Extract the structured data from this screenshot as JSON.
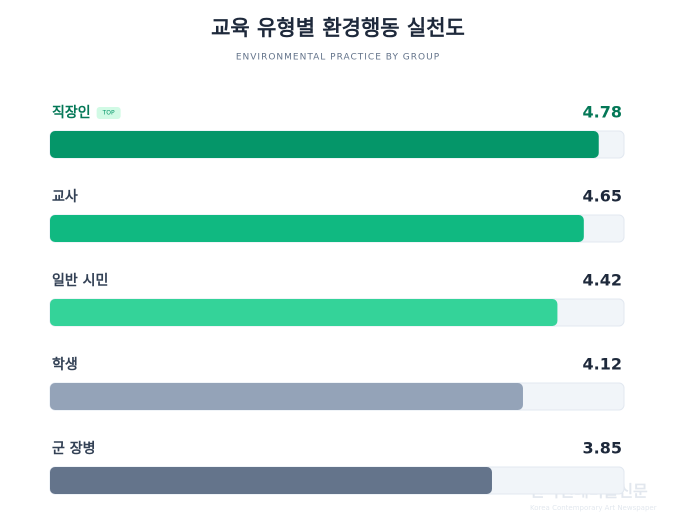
{
  "chart_data": {
    "type": "hbar",
    "title": "교육 유형별 환경행동 실천도",
    "subtitle": "ENVIRONMENTAL PRACTICE BY GROUP",
    "badge": "TOP",
    "categories": [
      "직장인",
      "교사",
      "일반 시민",
      "학생",
      "군 장병"
    ],
    "values": [
      4.78,
      4.65,
      4.42,
      4.12,
      3.85
    ],
    "colors": [
      "#059669",
      "#10b981",
      "#34d399",
      "#94a3b8",
      "#64748b"
    ],
    "xlim": [
      0,
      5
    ],
    "watermark": {
      "title": "한국현대미술신문",
      "subtitle": "Korea Contemporary Art Newspaper"
    }
  }
}
